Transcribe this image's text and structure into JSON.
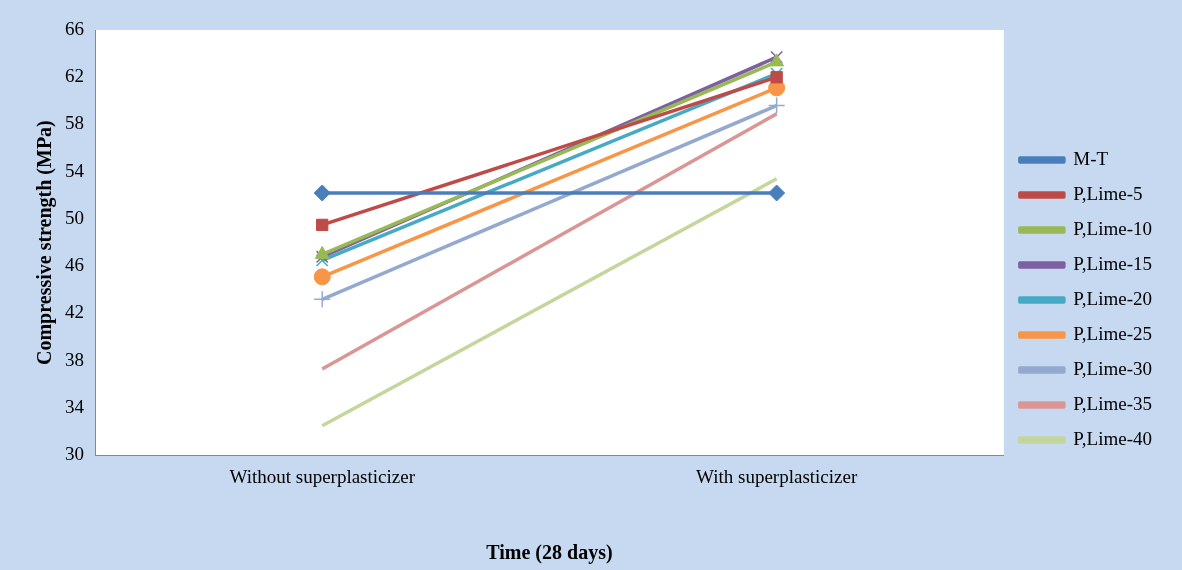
{
  "chart_data": {
    "type": "line",
    "xlabel": "Time (28 days)",
    "ylabel": "Compressive strength (MPa)",
    "categories": [
      "Without superplasticizer",
      "With superplasticizer"
    ],
    "ylim": [
      30,
      66
    ],
    "yticks": [
      30,
      34,
      38,
      42,
      46,
      50,
      54,
      58,
      62,
      66
    ],
    "grid": false,
    "legend": "right",
    "series": [
      {
        "name": "M-T",
        "color": "#4a7ebb",
        "marker": "diamond",
        "values": [
          52.2,
          52.2
        ]
      },
      {
        "name": "P,Lime-5",
        "color": "#be4b48",
        "marker": "square",
        "values": [
          49.5,
          62.0
        ]
      },
      {
        "name": "P,Lime-10",
        "color": "#98b954",
        "marker": "triangle",
        "values": [
          47.0,
          63.3
        ]
      },
      {
        "name": "P,Lime-15",
        "color": "#7d60a0",
        "marker": "cross",
        "values": [
          46.8,
          63.7
        ]
      },
      {
        "name": "P,Lime-20",
        "color": "#46aac5",
        "marker": "cross",
        "values": [
          46.5,
          62.3
        ]
      },
      {
        "name": "P,Lime-25",
        "color": "#f79646",
        "marker": "circle",
        "values": [
          45.1,
          61.1
        ]
      },
      {
        "name": "P,Lime-30",
        "color": "#93a9cf",
        "marker": "plus",
        "values": [
          43.2,
          59.6
        ]
      },
      {
        "name": "P,Lime-35",
        "color": "#d99694",
        "marker": "none",
        "values": [
          37.3,
          58.9
        ]
      },
      {
        "name": "P,Lime-40",
        "color": "#c3d69b",
        "marker": "none",
        "values": [
          32.5,
          53.4
        ]
      }
    ]
  }
}
